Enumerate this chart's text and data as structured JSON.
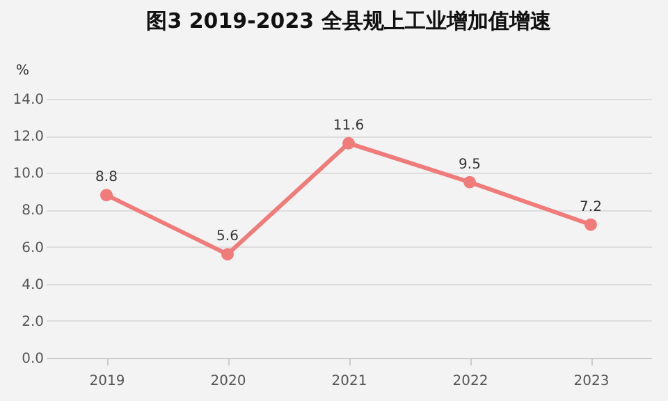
{
  "chart_data": {
    "type": "line",
    "title": "图3 2019-2023 全县规上工业增加值增速",
    "ylabel": "%",
    "categories": [
      "2019",
      "2020",
      "2021",
      "2022",
      "2023"
    ],
    "series": [
      {
        "color": "#f07b7b",
        "values": [
          8.8,
          5.6,
          11.6,
          9.5,
          7.2
        ]
      }
    ],
    "ylim": [
      0,
      14
    ],
    "yticks": [
      {
        "value": 0,
        "label": "0.0"
      },
      {
        "value": 2,
        "label": "2.0"
      },
      {
        "value": 4,
        "label": "4.0"
      },
      {
        "value": 6,
        "label": "6.0"
      },
      {
        "value": 8,
        "label": "8.0"
      },
      {
        "value": 10,
        "label": "10.0"
      },
      {
        "value": 12,
        "label": "12.0"
      },
      {
        "value": 14,
        "label": "14.0"
      }
    ],
    "grid": "y",
    "marker": "circle",
    "line_style": "solid",
    "data_labels": true,
    "legend": false
  }
}
